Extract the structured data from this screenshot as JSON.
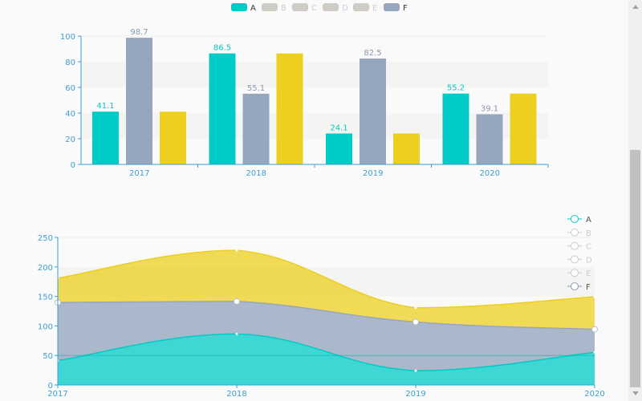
{
  "colors": {
    "A": "#00cbc6",
    "F": "#97a6bf",
    "Y": "#edcf1f",
    "inactive": "#cfccc6",
    "axis": "#3a9fd0"
  },
  "legend_top": [
    {
      "name": "A",
      "active": true
    },
    {
      "name": "B",
      "active": false
    },
    {
      "name": "C",
      "active": false
    },
    {
      "name": "D",
      "active": false
    },
    {
      "name": "E",
      "active": false
    },
    {
      "name": "F",
      "active": true
    }
  ],
  "legend_side": [
    {
      "name": "A",
      "active": true
    },
    {
      "name": "B",
      "active": false
    },
    {
      "name": "C",
      "active": false
    },
    {
      "name": "D",
      "active": false
    },
    {
      "name": "E",
      "active": false
    },
    {
      "name": "F",
      "active": true
    }
  ],
  "chart_data": [
    {
      "type": "bar",
      "categories": [
        "2017",
        "2018",
        "2019",
        "2020"
      ],
      "ylim": [
        0,
        100
      ],
      "yticks": [
        "0",
        "20",
        "40",
        "60",
        "80",
        "100"
      ],
      "series": [
        {
          "name": "A",
          "values": [
            41.1,
            86.5,
            24.1,
            55.2
          ],
          "labels": [
            "41.1",
            "86.5",
            "24.1",
            "55.2"
          ],
          "show_labels": true
        },
        {
          "name": "F",
          "values": [
            98.7,
            55.1,
            82.5,
            39.1
          ],
          "labels": [
            "98.7",
            "55.1",
            "82.5",
            "39.1"
          ],
          "show_labels": true
        },
        {
          "name": "",
          "values": [
            41.1,
            86.5,
            24.1,
            55.2
          ],
          "show_labels": false
        }
      ],
      "legend": "top-center",
      "grid": "split-area bands"
    },
    {
      "type": "area",
      "stacked": true,
      "categories": [
        "2017",
        "2018",
        "2019",
        "2020"
      ],
      "ylim": [
        0,
        250
      ],
      "yticks": [
        "0",
        "50",
        "100",
        "150",
        "200",
        "250"
      ],
      "series": [
        {
          "name": "A",
          "values": [
            41.1,
            86.5,
            24.1,
            55.2
          ]
        },
        {
          "name": "F",
          "values": [
            98.7,
            55.1,
            82.5,
            39.1
          ]
        },
        {
          "name": "",
          "values": [
            41.1,
            86.5,
            24.1,
            55.2
          ]
        }
      ],
      "legend": "right",
      "smooth": true
    }
  ]
}
